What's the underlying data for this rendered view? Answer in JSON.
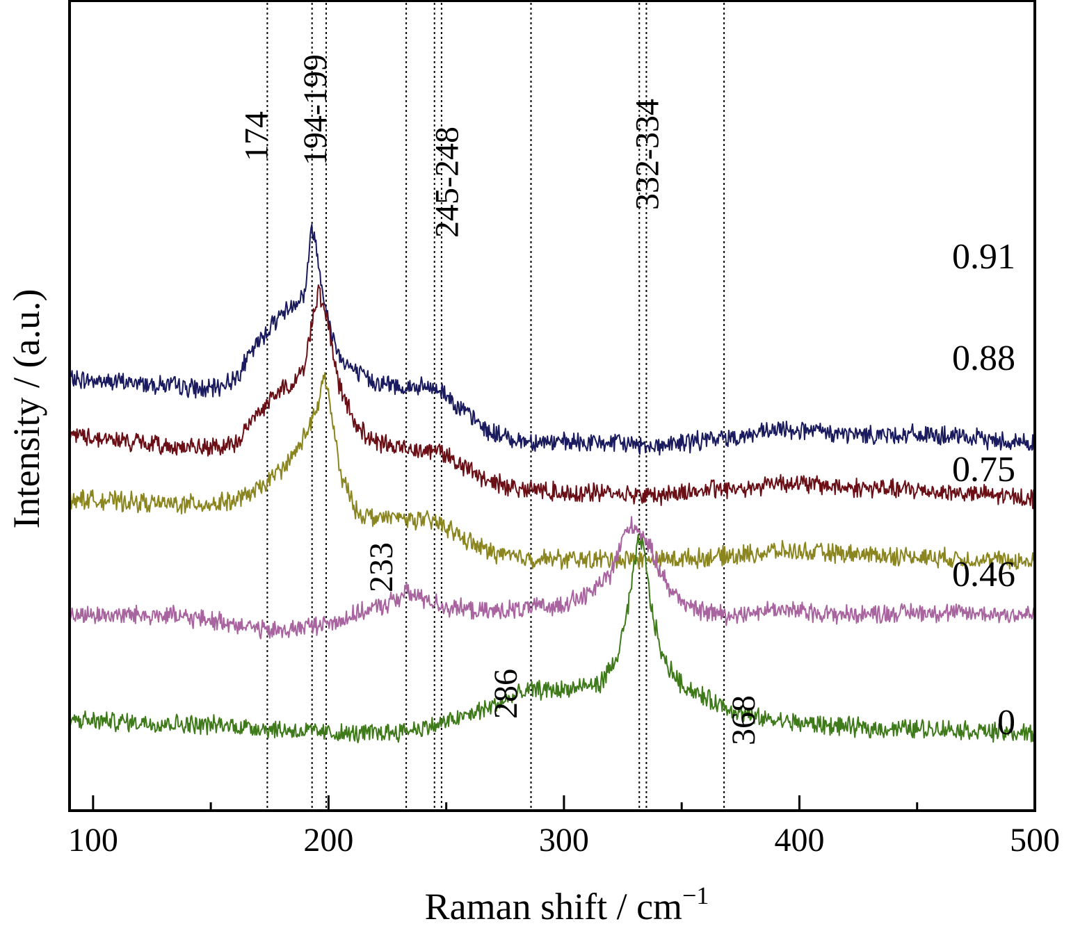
{
  "chart_data": {
    "type": "line",
    "xlabel": "Raman shift / cm",
    "xlabel_superscript": "−1",
    "ylabel": "Intensity / (a.u.)",
    "xlim": [
      90,
      500
    ],
    "x_ticks": [
      100,
      200,
      300,
      400,
      500
    ],
    "x_minor_ticks": [
      150,
      250,
      350,
      450
    ],
    "y_ticks_shown": false,
    "grid": false,
    "reference_lines": [
      174,
      193,
      199,
      233,
      245,
      248,
      286,
      332,
      335,
      368
    ],
    "annotations": [
      {
        "text": "174",
        "x": 174
      },
      {
        "text": "194-199",
        "x": 199
      },
      {
        "text": "245-248",
        "x": 255
      },
      {
        "text": "332-334",
        "x": 340
      },
      {
        "text": "233",
        "x": 227
      },
      {
        "text": "286",
        "x": 280
      },
      {
        "text": "368",
        "x": 381
      }
    ],
    "series": [
      {
        "name": "0.91",
        "color": "#1a1a5e",
        "points": [
          [
            90,
            3.2
          ],
          [
            130,
            3.1
          ],
          [
            150,
            3.0
          ],
          [
            160,
            3.2
          ],
          [
            170,
            3.85
          ],
          [
            178,
            4.3
          ],
          [
            185,
            4.55
          ],
          [
            190,
            4.75
          ],
          [
            193,
            6.0
          ],
          [
            195,
            5.5
          ],
          [
            200,
            4.2
          ],
          [
            205,
            3.6
          ],
          [
            212,
            3.3
          ],
          [
            220,
            3.15
          ],
          [
            232,
            3.05
          ],
          [
            240,
            3.05
          ],
          [
            248,
            3.0
          ],
          [
            258,
            2.6
          ],
          [
            268,
            2.25
          ],
          [
            280,
            2.1
          ],
          [
            300,
            2.05
          ],
          [
            320,
            2.05
          ],
          [
            340,
            2.0
          ],
          [
            360,
            2.1
          ],
          [
            380,
            2.2
          ],
          [
            395,
            2.3
          ],
          [
            420,
            2.2
          ],
          [
            450,
            2.2
          ],
          [
            500,
            2.05
          ]
        ]
      },
      {
        "name": "0.88",
        "color": "#6b0f16",
        "points": [
          [
            90,
            2.2
          ],
          [
            130,
            2.0
          ],
          [
            150,
            1.95
          ],
          [
            160,
            2.0
          ],
          [
            170,
            2.6
          ],
          [
            178,
            2.95
          ],
          [
            185,
            3.15
          ],
          [
            190,
            3.4
          ],
          [
            193,
            4.3
          ],
          [
            196,
            4.8
          ],
          [
            200,
            4.1
          ],
          [
            205,
            3.0
          ],
          [
            212,
            2.35
          ],
          [
            220,
            2.05
          ],
          [
            232,
            1.95
          ],
          [
            240,
            1.95
          ],
          [
            248,
            1.9
          ],
          [
            258,
            1.6
          ],
          [
            268,
            1.35
          ],
          [
            280,
            1.25
          ],
          [
            300,
            1.15
          ],
          [
            320,
            1.15
          ],
          [
            340,
            1.1
          ],
          [
            360,
            1.2
          ],
          [
            380,
            1.25
          ],
          [
            390,
            1.35
          ],
          [
            420,
            1.25
          ],
          [
            450,
            1.2
          ],
          [
            500,
            1.05
          ]
        ]
      },
      {
        "name": "0.75",
        "color": "#8b8520",
        "points": [
          [
            90,
            1.05
          ],
          [
            130,
            0.95
          ],
          [
            150,
            0.95
          ],
          [
            160,
            1.0
          ],
          [
            170,
            1.2
          ],
          [
            178,
            1.5
          ],
          [
            185,
            1.8
          ],
          [
            190,
            2.2
          ],
          [
            195,
            2.6
          ],
          [
            198,
            3.3
          ],
          [
            200,
            2.9
          ],
          [
            205,
            1.5
          ],
          [
            212,
            0.8
          ],
          [
            220,
            0.7
          ],
          [
            232,
            0.7
          ],
          [
            240,
            0.65
          ],
          [
            248,
            0.6
          ],
          [
            258,
            0.3
          ],
          [
            268,
            0.1
          ],
          [
            280,
            -0.02
          ],
          [
            300,
            -0.05
          ],
          [
            320,
            -0.05
          ],
          [
            340,
            -0.05
          ],
          [
            360,
            -0.02
          ],
          [
            380,
            0.05
          ],
          [
            390,
            0.1
          ],
          [
            420,
            0.05
          ],
          [
            450,
            0.0
          ],
          [
            500,
            -0.1
          ]
        ]
      },
      {
        "name": "0.46",
        "color": "#a8649f",
        "points": [
          [
            90,
            -1.05
          ],
          [
            130,
            -1.05
          ],
          [
            160,
            -1.2
          ],
          [
            175,
            -1.35
          ],
          [
            185,
            -1.3
          ],
          [
            200,
            -1.2
          ],
          [
            215,
            -1.0
          ],
          [
            225,
            -0.85
          ],
          [
            233,
            -0.65
          ],
          [
            240,
            -0.75
          ],
          [
            250,
            -0.9
          ],
          [
            265,
            -1.0
          ],
          [
            280,
            -0.95
          ],
          [
            295,
            -0.9
          ],
          [
            310,
            -0.7
          ],
          [
            320,
            -0.3
          ],
          [
            325,
            0.35
          ],
          [
            328,
            0.55
          ],
          [
            332,
            0.5
          ],
          [
            337,
            0.1
          ],
          [
            345,
            -0.6
          ],
          [
            355,
            -0.95
          ],
          [
            370,
            -1.05
          ],
          [
            390,
            -0.95
          ],
          [
            420,
            -1.05
          ],
          [
            450,
            -1.0
          ],
          [
            500,
            -1.05
          ]
        ]
      },
      {
        "name": "0",
        "color": "#3f7a1a",
        "points": [
          [
            90,
            -2.95
          ],
          [
            130,
            -3.0
          ],
          [
            160,
            -3.05
          ],
          [
            190,
            -3.15
          ],
          [
            210,
            -3.2
          ],
          [
            230,
            -3.15
          ],
          [
            245,
            -3.05
          ],
          [
            260,
            -2.85
          ],
          [
            275,
            -2.6
          ],
          [
            286,
            -2.4
          ],
          [
            300,
            -2.4
          ],
          [
            315,
            -2.3
          ],
          [
            322,
            -1.9
          ],
          [
            327,
            -1.0
          ],
          [
            330,
            -0.15
          ],
          [
            332,
            0.35
          ],
          [
            334,
            0.1
          ],
          [
            337,
            -0.9
          ],
          [
            342,
            -1.85
          ],
          [
            350,
            -2.3
          ],
          [
            360,
            -2.55
          ],
          [
            368,
            -2.7
          ],
          [
            380,
            -2.9
          ],
          [
            400,
            -3.0
          ],
          [
            430,
            -3.1
          ],
          [
            460,
            -3.1
          ],
          [
            500,
            -3.2
          ]
        ]
      }
    ]
  }
}
